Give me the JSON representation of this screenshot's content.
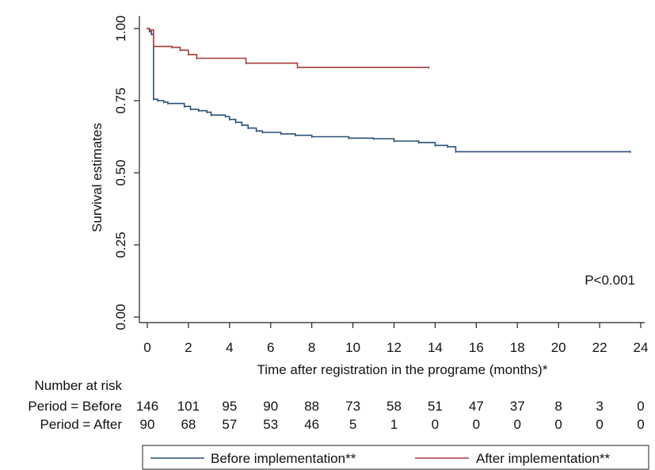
{
  "chart_data": {
    "type": "line",
    "xlabel": "Time after registration in the programe (months)*",
    "ylabel": "Survival estimates",
    "xlim": [
      0,
      24
    ],
    "ylim": [
      0,
      1
    ],
    "x_ticks": [
      "0",
      "2",
      "4",
      "6",
      "8",
      "10",
      "12",
      "14",
      "16",
      "18",
      "20",
      "22",
      "24"
    ],
    "y_ticks": [
      "0.00",
      "0.25",
      "0.50",
      "0.75",
      "1.00"
    ],
    "grid": false,
    "annotation": "P<0.001",
    "legend_position": "bottom",
    "series": [
      {
        "name": "Before implementation**",
        "color": "#2b4f7a",
        "step_points": [
          [
            0,
            1.0
          ],
          [
            0.1,
            0.99
          ],
          [
            0.2,
            0.98
          ],
          [
            0.3,
            0.755
          ],
          [
            0.5,
            0.75
          ],
          [
            0.8,
            0.745
          ],
          [
            1.0,
            0.74
          ],
          [
            1.8,
            0.73
          ],
          [
            2.1,
            0.72
          ],
          [
            2.5,
            0.715
          ],
          [
            2.9,
            0.71
          ],
          [
            3.1,
            0.7
          ],
          [
            3.8,
            0.695
          ],
          [
            4.0,
            0.685
          ],
          [
            4.3,
            0.675
          ],
          [
            4.6,
            0.665
          ],
          [
            4.9,
            0.655
          ],
          [
            5.3,
            0.645
          ],
          [
            5.6,
            0.64
          ],
          [
            6.5,
            0.635
          ],
          [
            7.2,
            0.63
          ],
          [
            8.0,
            0.625
          ],
          [
            9.8,
            0.62
          ],
          [
            11.0,
            0.618
          ],
          [
            12.0,
            0.61
          ],
          [
            13.2,
            0.605
          ],
          [
            14.0,
            0.595
          ],
          [
            14.6,
            0.59
          ],
          [
            15.0,
            0.573
          ],
          [
            23.5,
            0.573
          ]
        ]
      },
      {
        "name": "After implementation**",
        "color": "#a83a3a",
        "step_points": [
          [
            0,
            1.0
          ],
          [
            0.1,
            0.995
          ],
          [
            0.3,
            0.938
          ],
          [
            1.2,
            0.935
          ],
          [
            1.6,
            0.925
          ],
          [
            2.0,
            0.91
          ],
          [
            2.4,
            0.897
          ],
          [
            4.8,
            0.88
          ],
          [
            7.3,
            0.865
          ],
          [
            13.7,
            0.865
          ]
        ]
      }
    ],
    "risk_table": {
      "heading": "Number at risk",
      "rows": [
        {
          "label": "Period = Before",
          "values": [
            "146",
            "101",
            "95",
            "90",
            "88",
            "73",
            "58",
            "51",
            "47",
            "37",
            "8",
            "3",
            "0"
          ]
        },
        {
          "label": "Period = After",
          "values": [
            "90",
            "68",
            "57",
            "53",
            "46",
            "5",
            "1",
            "0",
            "0",
            "0",
            "0",
            "0",
            "0"
          ]
        }
      ]
    }
  }
}
